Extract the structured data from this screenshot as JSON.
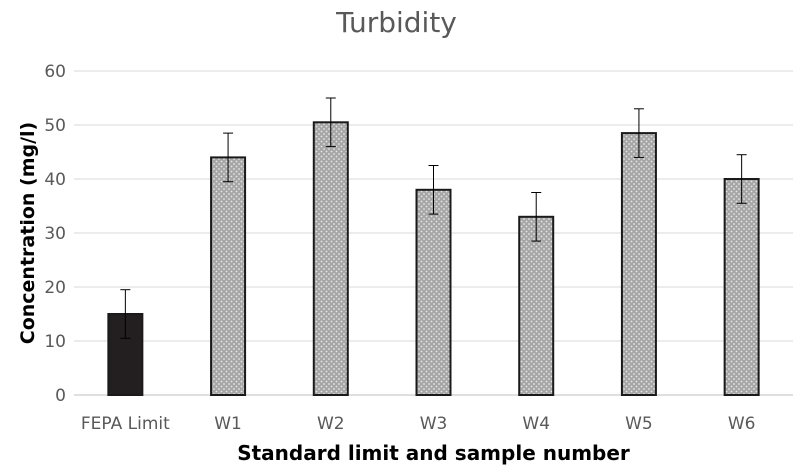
{
  "chart_data": {
    "type": "bar",
    "title": "Turbidity",
    "xlabel": "Standard limit and sample number",
    "ylabel": "Concentration (mg/l)",
    "categories": [
      "FEPA Limit",
      "W1",
      "W2",
      "W3",
      "W4",
      "W5",
      "W6"
    ],
    "values": [
      15,
      44,
      50.5,
      38,
      33,
      48.5,
      40
    ],
    "error": [
      4.5,
      4.5,
      4.5,
      4.5,
      4.5,
      4.5,
      4.5
    ],
    "ylim": [
      0,
      60
    ],
    "yticks": [
      "0",
      "10",
      "20",
      "30",
      "40",
      "50",
      "60"
    ],
    "grid": true,
    "colors": {
      "limit_bar": "#231f20",
      "sample_bar": "#a6a6a6",
      "grid": "#d9d9d9",
      "text": "#595959"
    }
  }
}
